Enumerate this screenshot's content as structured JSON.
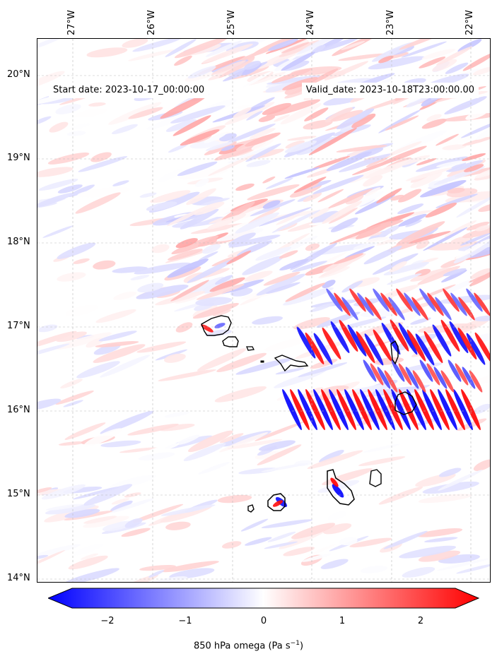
{
  "header": {
    "start_date": "Start date: 2023-10-17_00:00:00",
    "valid_date": "Valid_date: 2023-10-18T23:00:00.00"
  },
  "lon_labels": [
    "27°W",
    "26°W",
    "25°W",
    "24°W",
    "23°W",
    "22°W"
  ],
  "lat_labels": [
    "20°N",
    "19°N",
    "18°N",
    "17°N",
    "16°N",
    "15°N",
    "14°N"
  ],
  "colorbar": {
    "ticks": [
      "−2",
      "−1",
      "0",
      "1",
      "2"
    ],
    "label_main": "850 hPa omega (Pa s",
    "label_sup": "−1",
    "label_end": ")",
    "min_color": "#0000ff",
    "mid_color": "#ffffff",
    "max_color": "#ff0000"
  }
}
